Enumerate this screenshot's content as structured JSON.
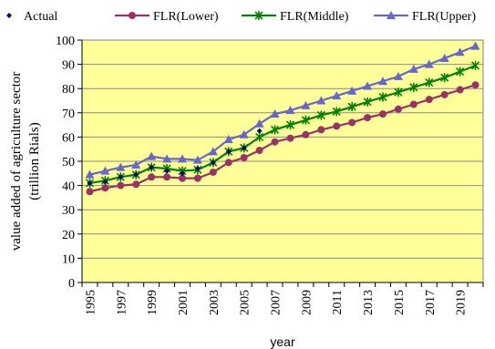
{
  "chart_data": {
    "type": "line",
    "title": "",
    "xlabel": "year",
    "ylabel_line1": "value added of agriculture sector",
    "ylabel_line2": "(trillion Rials)",
    "x": [
      1995,
      1996,
      1997,
      1998,
      1999,
      2000,
      2001,
      2002,
      2003,
      2004,
      2005,
      2006,
      2007,
      2008,
      2009,
      2010,
      2011,
      2012,
      2013,
      2014,
      2015,
      2016,
      2017,
      2018,
      2019,
      2020
    ],
    "xtick_labels": [
      "1995",
      "1997",
      "1999",
      "2001",
      "2003",
      "2005",
      "2007",
      "2009",
      "2011",
      "2013",
      "2015",
      "2017",
      "2019"
    ],
    "ylim": [
      0,
      100
    ],
    "yticks": [
      0,
      10,
      20,
      30,
      40,
      50,
      60,
      70,
      80,
      90,
      100
    ],
    "plot_background": "#ffff99",
    "grid": true,
    "legend_position": "top",
    "series": [
      {
        "name": "Actual",
        "color": "#000080",
        "marker": "diamond",
        "x": [
          1995,
          1996,
          1997,
          1998,
          1999,
          2000,
          2001,
          2002,
          2003,
          2004,
          2005,
          2006
        ],
        "values": [
          41,
          41.5,
          43.5,
          44.5,
          47.5,
          46,
          45,
          47,
          49.5,
          54,
          55.5,
          62.5
        ]
      },
      {
        "name": "FLR(Lower)",
        "color": "#993366",
        "marker": "circle",
        "values": [
          37.5,
          39,
          40,
          40.5,
          43.5,
          43.5,
          43,
          43,
          45.5,
          49.5,
          51.5,
          54.5,
          58,
          59.5,
          61,
          63,
          64.5,
          66,
          68,
          69.5,
          71.5,
          73.5,
          75.5,
          77.5,
          79.5,
          81.5
        ]
      },
      {
        "name": "FLR(Middle)",
        "color": "#008000",
        "marker": "star",
        "values": [
          41,
          42,
          43.5,
          44.5,
          47.5,
          47,
          46,
          46.5,
          49.5,
          54,
          55.5,
          60,
          63,
          65,
          67,
          69,
          70.5,
          72.5,
          74.5,
          76.5,
          78.5,
          80.5,
          82.5,
          84.5,
          87,
          89.5
        ]
      },
      {
        "name": "FLR(Upper)",
        "color": "#6666cc",
        "marker": "triangle",
        "values": [
          44.5,
          46,
          47.5,
          48.5,
          52,
          51,
          51,
          50.5,
          54,
          59,
          61,
          65.5,
          69.5,
          71,
          73,
          75,
          77,
          79,
          81,
          83,
          85,
          88,
          90,
          92.5,
          95,
          97.5
        ]
      }
    ]
  }
}
